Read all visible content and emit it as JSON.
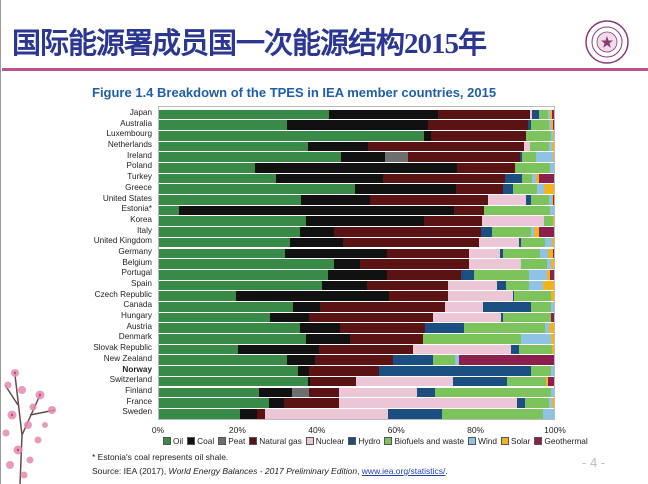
{
  "slide": {
    "title_cjk": "国际能源署成员国一次能源结构",
    "title_year": "2015",
    "title_suffix": "年",
    "page_number": "- 4 -",
    "accent_color": "#c0508a",
    "title_color": "#2b3790"
  },
  "chart_data": {
    "type": "bar",
    "orientation": "horizontal",
    "stacked": true,
    "normalized": true,
    "title": "Figure 1.4  Breakdown of the TPES in IEA member countries, 2015",
    "xlim": [
      0,
      100
    ],
    "x_ticks": [
      "0%",
      "20%",
      "40%",
      "60%",
      "80%",
      "100%"
    ],
    "grid": false,
    "legend_placement": "bottom",
    "categories": [
      "Japan",
      "Australia",
      "Luxembourg",
      "Netherlands",
      "Ireland",
      "Poland",
      "Turkey",
      "Greece",
      "United States",
      "Estonia*",
      "Korea",
      "Italy",
      "United Kingdom",
      "Germany",
      "Belgium",
      "Portugal",
      "Spain",
      "Czech Republic",
      "Canada",
      "Hungary",
      "Austria",
      "Denmark",
      "Slovak Republic",
      "New Zealand",
      "Norway",
      "Switzerland",
      "Finland",
      "France",
      "Sweden"
    ],
    "emphasized_category": "Norway",
    "series": [
      {
        "name": "Oil",
        "color": "#3a8a47",
        "values": [
          42.8,
          32.5,
          67.2,
          37.7,
          46.1,
          24.2,
          29.7,
          49.7,
          36.0,
          5.1,
          37.3,
          35.8,
          33.1,
          32.0,
          44.4,
          42.8,
          41.3,
          19.6,
          33.9,
          28.2,
          35.6,
          37.1,
          19.9,
          32.5,
          35.2,
          37.7,
          25.3,
          27.9,
          20.6
        ]
      },
      {
        "name": "Coal",
        "color": "#111111",
        "values": [
          27.5,
          35.5,
          1.7,
          15.2,
          11.0,
          51.2,
          27.1,
          25.5,
          17.5,
          69.6,
          29.9,
          8.6,
          13.6,
          25.7,
          6.6,
          14.9,
          11.3,
          38.6,
          6.9,
          9.9,
          10.3,
          11.3,
          20.6,
          7.1,
          2.8,
          0.6,
          8.5,
          3.7,
          4.3
        ]
      },
      {
        "name": "Peat",
        "color": "#6e6e6e",
        "values": [
          0,
          0,
          0,
          0,
          5.9,
          0,
          0,
          0,
          0,
          0,
          0,
          0,
          0,
          0,
          0,
          0,
          0,
          0,
          0,
          0,
          0,
          0,
          0,
          0,
          0,
          0,
          4.3,
          0,
          0
        ]
      },
      {
        "name": "Natural gas",
        "color": "#5a1212",
        "values": [
          23.3,
          25.3,
          23.9,
          39.5,
          28.3,
          14.8,
          30.8,
          11.9,
          29.7,
          7.6,
          14.5,
          37.1,
          34.2,
          20.8,
          27.4,
          18.7,
          20.5,
          14.9,
          31.7,
          31.2,
          21.4,
          18.4,
          23.9,
          19.6,
          17.6,
          11.6,
          7.4,
          13.9,
          2.0
        ]
      },
      {
        "name": "Nuclear",
        "color": "#eac6d6",
        "values": [
          0.4,
          0,
          0,
          1.5,
          0,
          0,
          0,
          0,
          9.6,
          0,
          15.8,
          0,
          10.3,
          7.8,
          13.2,
          0,
          12.6,
          16.5,
          9.6,
          17.4,
          0,
          0,
          24.7,
          0,
          0,
          24.6,
          19.7,
          45.1,
          31.0
        ]
      },
      {
        "name": "Hydro",
        "color": "#1b4f82",
        "values": [
          1.9,
          1.0,
          0,
          0,
          0.7,
          0,
          4.4,
          2.4,
          1.3,
          0,
          0,
          2.8,
          0.4,
          0.7,
          0,
          3.4,
          2.1,
          0.3,
          12.0,
          0.3,
          10.0,
          0,
          2.1,
          10.1,
          38.5,
          13.5,
          4.8,
          2.1,
          13.7
        ]
      },
      {
        "name": "Biofuels and waste",
        "color": "#7cc35b",
        "values": [
          2.3,
          4.4,
          6.4,
          4.8,
          3.5,
          8.7,
          2.5,
          6.3,
          4.6,
          16.6,
          2.2,
          9.8,
          6.1,
          9.5,
          6.7,
          13.9,
          5.9,
          9.3,
          5.1,
          12.2,
          20.4,
          24.8,
          8.4,
          5.7,
          5.1,
          9.9,
          29.2,
          6.0,
          25.5
        ]
      },
      {
        "name": "Wind",
        "color": "#8ec3e6",
        "values": [
          0.3,
          0.5,
          0.5,
          0.9,
          4.2,
          1.1,
          0.9,
          1.7,
          0.7,
          1.1,
          0,
          0.8,
          1.9,
          2.1,
          0.9,
          4.6,
          3.6,
          0,
          0.8,
          0,
          1.0,
          7.6,
          0,
          1.0,
          0.8,
          0,
          0.8,
          0.9,
          2.9
        ]
      },
      {
        "name": "Solar",
        "color": "#f3b220",
        "values": [
          0.6,
          0.5,
          0.3,
          0.4,
          0.3,
          0,
          0.8,
          2.5,
          0.3,
          0,
          0.3,
          1.3,
          0.4,
          1.2,
          0.8,
          0.6,
          2.7,
          0.8,
          0,
          0,
          1.3,
          0.8,
          0.4,
          0,
          0,
          0.7,
          0,
          0.4,
          0
        ]
      },
      {
        "name": "Geothermal",
        "color": "#8b1f4e",
        "values": [
          0.5,
          0.3,
          0,
          0,
          0,
          0,
          3.8,
          0,
          0.3,
          0,
          0,
          3.8,
          0,
          0.2,
          0,
          1.1,
          0,
          0,
          0,
          0.8,
          0,
          0,
          0,
          24.0,
          0,
          1.4,
          0,
          0,
          0
        ]
      }
    ],
    "footnote": "* Estonia's coal represents oil shale.",
    "source_prefix": "Source: IEA (2017), ",
    "source_title": "World Energy Balances - 2017 Preliminary Edition",
    "source_sep": ", ",
    "source_link": "www.iea.org/statistics/",
    "source_end": "."
  }
}
